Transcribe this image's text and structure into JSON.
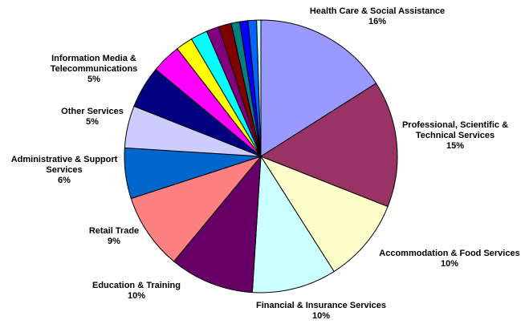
{
  "chart_data": {
    "type": "pie",
    "categories": [
      "Health Care & Social Assistance",
      "Professional, Scientific & Technical Services",
      "Accommodation & Food Services",
      "Financial & Insurance Services",
      "Education & Training",
      "Retail Trade",
      "Administrative & Support Services",
      "Other Services",
      "Information Media & Telecommunications",
      null,
      null,
      null,
      null,
      null,
      null,
      null,
      null,
      null
    ],
    "values": [
      16,
      15,
      10,
      10,
      10,
      9,
      6,
      5,
      5,
      3.5,
      2,
      2,
      1.5,
      1.5,
      1,
      1,
      1,
      0.5
    ],
    "value_labels": [
      "16%",
      "15%",
      "10%",
      "10%",
      "10%",
      "9%",
      "6%",
      "5%",
      "5%",
      null,
      null,
      null,
      null,
      null,
      null,
      null,
      null,
      null
    ],
    "colors": [
      "#9999ff",
      "#993366",
      "#ffffcc",
      "#ccffff",
      "#660066",
      "#ff8080",
      "#0066cc",
      "#ccccff",
      "#000080",
      "#ff00ff",
      "#ffff00",
      "#00ffff",
      "#800080",
      "#800000",
      "#008080",
      "#0000ff",
      "#0066ff",
      "#ccffff"
    ]
  }
}
